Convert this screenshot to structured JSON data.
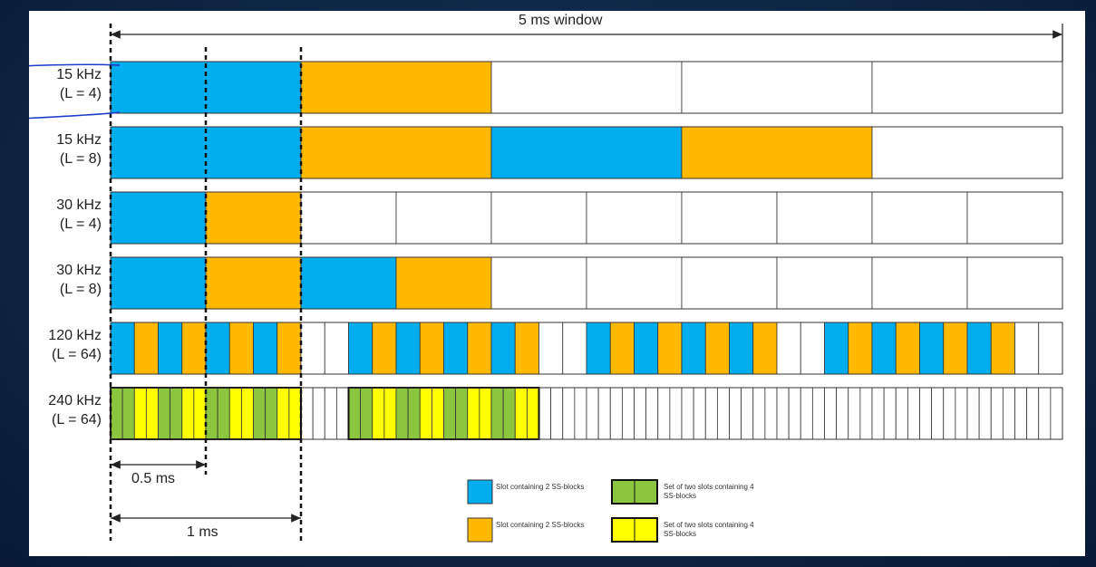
{
  "window_label": "5 ms window",
  "rows": [
    {
      "scs": "15 kHz",
      "L": "(L = 4)",
      "slots": 5,
      "pattern": "B,O"
    },
    {
      "scs": "15 kHz",
      "L": "(L = 8)",
      "slots": 5,
      "pattern": "B,O,B,O"
    },
    {
      "scs": "30 kHz",
      "L": "(L = 4)",
      "slots": 10,
      "pattern": "B,O"
    },
    {
      "scs": "30 kHz",
      "L": "(L = 8)",
      "slots": 10,
      "pattern": "B,O,B,O"
    },
    {
      "scs": "120 kHz",
      "L": "(L = 64)",
      "slots": 40,
      "pattern": "B,O,B,O,B,O,B,O,W,W,B,O,B,O,B,O,B,O,W,W,B,O,B,O,B,O,B,O,W,W,B,O,B,O,B,O,B,O,W,W"
    },
    {
      "scs": "240 kHz",
      "L": "(L = 64)",
      "slots": 80,
      "pattern": "G,G,Y,Y,G,G,Y,Y,G,G,Y,Y,G,G,Y,Y,W,W,W,W,G,G,Y,Y,G,G,Y,Y,G,G,Y,Y,G,G,Y,Y"
    }
  ],
  "measures": {
    "half": "0.5 ms",
    "one": "1 ms"
  },
  "legend": [
    {
      "label": "Slot containing 2 SS-blocks",
      "type": "single",
      "color": "#00aeef"
    },
    {
      "label": "Slot containing 2 SS-blocks",
      "type": "single",
      "color": "#ffb900"
    },
    {
      "label": "Set of two slots containing 4 SS-blocks",
      "type": "double",
      "color": "#8cc63f"
    },
    {
      "label": "Set of two slots containing 4 SS-blocks",
      "type": "double",
      "color": "#ffff00"
    }
  ],
  "colors": {
    "B": "#00aeef",
    "O": "#ffb900",
    "G": "#8cc63f",
    "Y": "#ffff00",
    "W": "#ffffff"
  }
}
